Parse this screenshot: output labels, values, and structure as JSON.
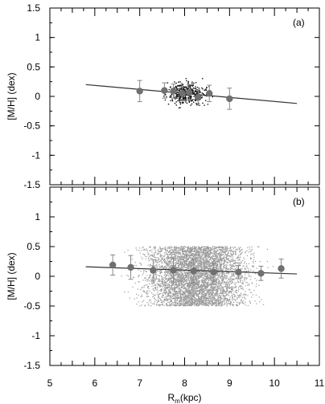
{
  "chart_data": {
    "type": "scatter",
    "shared_x": {
      "label_main": "R",
      "label_sub": "m",
      "label_unit": "(kpc)",
      "lim": [
        5,
        11
      ],
      "ticks": [
        "5",
        "6",
        "7",
        "8",
        "9",
        "10",
        "11"
      ]
    },
    "panels": [
      {
        "id": "a",
        "panel_label": "(a)",
        "ylabel": "[M/H] (dex)",
        "ylim": [
          -1.5,
          1.5
        ],
        "yticks": [
          "1.5",
          "1",
          "0.5",
          "0",
          "-0.5",
          "-1",
          "-1.5"
        ],
        "ytick_values": [
          1.5,
          1,
          0.5,
          0,
          -0.5,
          -1,
          -1.5
        ],
        "fit_line": {
          "x": [
            5.8,
            10.5
          ],
          "y": [
            0.2,
            -0.12
          ]
        },
        "binned_means": [
          {
            "x": 7.0,
            "y": 0.09,
            "err": 0.18
          },
          {
            "x": 7.55,
            "y": 0.1,
            "err": 0.13
          },
          {
            "x": 7.75,
            "y": 0.09,
            "err": 0.12
          },
          {
            "x": 7.95,
            "y": 0.05,
            "err": 0.12
          },
          {
            "x": 8.1,
            "y": 0.07,
            "err": 0.13
          },
          {
            "x": 8.3,
            "y": -0.02,
            "err": 0.13
          },
          {
            "x": 8.55,
            "y": 0.05,
            "err": 0.14
          },
          {
            "x": 9.0,
            "y": -0.04,
            "err": 0.18
          }
        ],
        "scatter": {
          "x_range": [
            6.7,
            9.7
          ],
          "y_range": [
            -0.5,
            0.5
          ],
          "density": "sparse",
          "color": "#111111"
        }
      },
      {
        "id": "b",
        "panel_label": "(b)",
        "ylabel": "[M/H] (dex)",
        "ylim": [
          -1.5,
          1.5
        ],
        "yticks": [
          "1",
          "0.5",
          "0",
          "-0.5",
          "-1",
          "-1.5"
        ],
        "ytick_values": [
          1,
          0.5,
          0,
          -0.5,
          -1,
          -1.5
        ],
        "fit_line": {
          "x": [
            5.8,
            10.5
          ],
          "y": [
            0.16,
            0.04
          ]
        },
        "binned_means": [
          {
            "x": 6.4,
            "y": 0.19,
            "err": 0.17
          },
          {
            "x": 6.8,
            "y": 0.15,
            "err": 0.2
          },
          {
            "x": 7.3,
            "y": 0.1,
            "err": 0.18
          },
          {
            "x": 7.75,
            "y": 0.1,
            "err": 0.2
          },
          {
            "x": 8.2,
            "y": 0.09,
            "err": 0.2
          },
          {
            "x": 8.65,
            "y": 0.07,
            "err": 0.15
          },
          {
            "x": 9.2,
            "y": 0.07,
            "err": 0.11
          },
          {
            "x": 9.7,
            "y": 0.05,
            "err": 0.12
          },
          {
            "x": 10.15,
            "y": 0.13,
            "err": 0.16
          }
        ],
        "scatter": {
          "x_range": [
            6.3,
            10.2
          ],
          "y_range": [
            -0.5,
            0.5
          ],
          "density": "dense",
          "color": "#9a9a9a"
        }
      }
    ],
    "colors": {
      "mean_marker": "#707070",
      "fit_line": "#333333"
    }
  }
}
